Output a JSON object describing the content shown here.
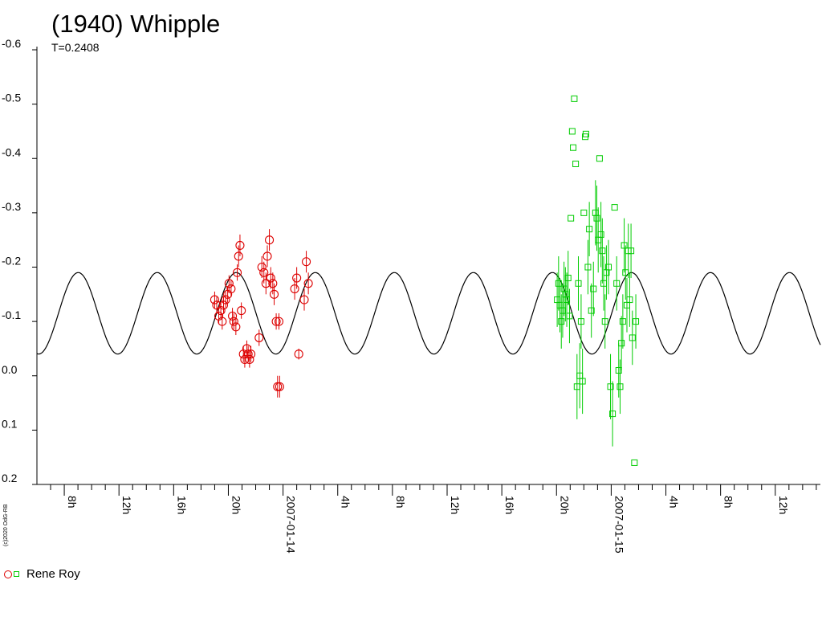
{
  "chart_data": {
    "type": "scatter",
    "title": "(1940) Whipple",
    "subtitle": "T=0.2408",
    "copyright": "(c)2020 OdG-RB",
    "ylim": [
      -0.6,
      0.2
    ],
    "y_inverted": true,
    "y_ticks": [
      "-0.6",
      "-0.5",
      "-0.4",
      "-0.3",
      "-0.2",
      "-0.1",
      "0.0",
      "0.1",
      "0.2"
    ],
    "x_ticks": [
      "8h",
      "12h",
      "16h",
      "20h",
      "2007-01-14",
      "4h",
      "8h",
      "12h",
      "16h",
      "20h",
      "2007-01-15",
      "4h",
      "8h",
      "12h"
    ],
    "grid": false,
    "legend": {
      "position": "bottom-left",
      "label": "Rene Roy"
    },
    "colors": {
      "model": "#000000",
      "series1": "#dd0000",
      "series2": "#00cc00"
    },
    "model_curve": {
      "mean": -0.115,
      "amplitude": 0.075,
      "period_hours": 5.78,
      "phase_hours": 0.35,
      "second_harmonic": 0.0
    },
    "series": [
      {
        "marker": "circle",
        "color": "#dd0000",
        "points": [
          [
            19.0,
            -0.14,
            0.015
          ],
          [
            19.15,
            -0.13,
            0.015
          ],
          [
            19.3,
            -0.11,
            0.015
          ],
          [
            19.45,
            -0.12,
            0.015
          ],
          [
            19.55,
            -0.1,
            0.015
          ],
          [
            19.65,
            -0.13,
            0.015
          ],
          [
            19.8,
            -0.14,
            0.015
          ],
          [
            19.95,
            -0.15,
            0.015
          ],
          [
            20.05,
            -0.17,
            0.015
          ],
          [
            20.2,
            -0.16,
            0.015
          ],
          [
            20.3,
            -0.11,
            0.015
          ],
          [
            20.4,
            -0.1,
            0.015
          ],
          [
            20.55,
            -0.09,
            0.015
          ],
          [
            20.65,
            -0.19,
            0.015
          ],
          [
            20.75,
            -0.22,
            0.02
          ],
          [
            20.85,
            -0.24,
            0.02
          ],
          [
            20.95,
            -0.12,
            0.015
          ],
          [
            21.1,
            -0.04,
            0.015
          ],
          [
            21.2,
            -0.03,
            0.015
          ],
          [
            21.35,
            -0.05,
            0.015
          ],
          [
            21.45,
            -0.04,
            0.015
          ],
          [
            21.55,
            -0.03,
            0.015
          ],
          [
            21.65,
            -0.04,
            0.015
          ],
          [
            22.25,
            -0.07,
            0.015
          ],
          [
            22.45,
            -0.2,
            0.02
          ],
          [
            22.6,
            -0.19,
            0.02
          ],
          [
            22.75,
            -0.17,
            0.02
          ],
          [
            22.85,
            -0.22,
            0.02
          ],
          [
            23.0,
            -0.25,
            0.02
          ],
          [
            23.1,
            -0.18,
            0.02
          ],
          [
            23.25,
            -0.17,
            0.02
          ],
          [
            23.35,
            -0.15,
            0.02
          ],
          [
            23.5,
            -0.1,
            0.015
          ],
          [
            23.6,
            0.02,
            0.02
          ],
          [
            23.7,
            -0.1,
            0.015
          ],
          [
            23.75,
            0.02,
            0.02
          ],
          [
            24.85,
            -0.16,
            0.02
          ],
          [
            25.0,
            -0.18,
            0.02
          ],
          [
            25.15,
            -0.04,
            0.01
          ],
          [
            25.55,
            -0.14,
            0.02
          ],
          [
            25.7,
            -0.21,
            0.02
          ],
          [
            25.85,
            -0.17,
            0.02
          ]
        ]
      },
      {
        "marker": "square",
        "color": "#00cc00",
        "points": [
          [
            44.05,
            -0.14,
            0.05
          ],
          [
            44.15,
            -0.17,
            0.05
          ],
          [
            44.25,
            -0.13,
            0.05
          ],
          [
            44.35,
            -0.1,
            0.05
          ],
          [
            44.45,
            -0.12,
            0.05
          ],
          [
            44.55,
            -0.16,
            0.05
          ],
          [
            44.65,
            -0.15,
            0.05
          ],
          [
            44.75,
            -0.14,
            0.05
          ],
          [
            44.85,
            -0.18,
            0.05
          ],
          [
            44.95,
            -0.11,
            0.05
          ],
          [
            45.05,
            -0.29,
            0.0
          ],
          [
            45.15,
            -0.45,
            0.0
          ],
          [
            45.22,
            -0.42,
            0.0
          ],
          [
            45.3,
            -0.51,
            0.0
          ],
          [
            45.4,
            -0.39,
            0.0
          ],
          [
            45.5,
            0.02,
            0.06
          ],
          [
            45.6,
            -0.17,
            0.05
          ],
          [
            45.7,
            0.0,
            0.06
          ],
          [
            45.8,
            -0.1,
            0.05
          ],
          [
            45.9,
            0.01,
            0.06
          ],
          [
            46.0,
            -0.3,
            0.0
          ],
          [
            46.1,
            -0.44,
            0.0
          ],
          [
            46.15,
            -0.445,
            0.0
          ],
          [
            46.3,
            -0.2,
            0.05
          ],
          [
            46.4,
            -0.27,
            0.05
          ],
          [
            46.55,
            -0.12,
            0.05
          ],
          [
            46.7,
            -0.16,
            0.05
          ],
          [
            46.85,
            -0.3,
            0.06
          ],
          [
            46.95,
            -0.29,
            0.06
          ],
          [
            47.05,
            -0.25,
            0.06
          ],
          [
            47.15,
            -0.4,
            0.0
          ],
          [
            47.25,
            -0.26,
            0.06
          ],
          [
            47.35,
            -0.23,
            0.06
          ],
          [
            47.45,
            -0.17,
            0.05
          ],
          [
            47.55,
            -0.1,
            0.05
          ],
          [
            47.65,
            -0.19,
            0.05
          ],
          [
            47.8,
            -0.2,
            0.05
          ],
          [
            47.95,
            0.02,
            0.06
          ],
          [
            48.1,
            0.07,
            0.06
          ],
          [
            48.25,
            -0.31,
            0.0
          ],
          [
            48.4,
            -0.17,
            0.05
          ],
          [
            48.55,
            -0.01,
            0.05
          ],
          [
            48.65,
            0.02,
            0.05
          ],
          [
            48.75,
            -0.06,
            0.05
          ],
          [
            48.85,
            -0.1,
            0.05
          ],
          [
            48.95,
            -0.24,
            0.05
          ],
          [
            49.05,
            -0.19,
            0.05
          ],
          [
            49.15,
            -0.13,
            0.05
          ],
          [
            49.25,
            -0.23,
            0.05
          ],
          [
            49.35,
            -0.14,
            0.05
          ],
          [
            49.45,
            -0.23,
            0.05
          ],
          [
            49.55,
            -0.07,
            0.05
          ],
          [
            49.7,
            0.16,
            0.0
          ],
          [
            49.8,
            -0.1,
            0.05
          ]
        ]
      }
    ]
  }
}
